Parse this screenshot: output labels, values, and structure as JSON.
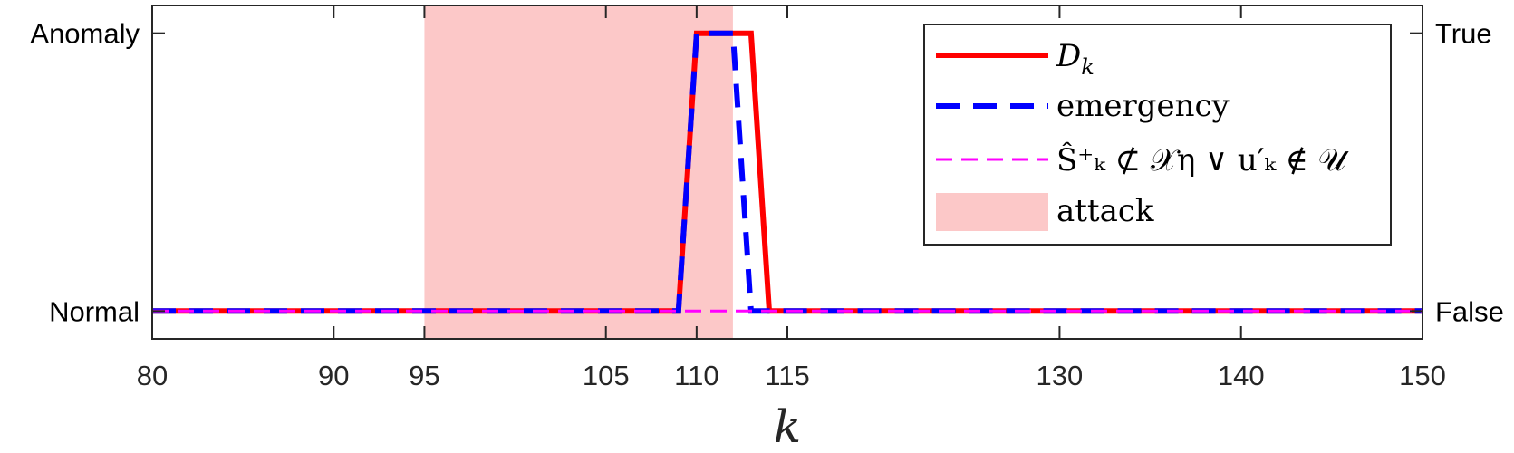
{
  "chart_data": {
    "type": "line",
    "title": "",
    "xlabel": "k",
    "ylabel": "",
    "xlim": [
      80,
      150
    ],
    "ylim": [
      -0.1,
      1.1
    ],
    "xticks": [
      80,
      90,
      95,
      105,
      110,
      115,
      130,
      140,
      150
    ],
    "yticks_left": [
      {
        "value": 0,
        "label": "Normal"
      },
      {
        "value": 1,
        "label": "Anomaly"
      }
    ],
    "yticks_right": [
      {
        "value": 0,
        "label": "False"
      },
      {
        "value": 1,
        "label": "True"
      }
    ],
    "grid": false,
    "legend_position": "top-right",
    "shaded_regions": [
      {
        "name": "attack",
        "x_start": 95,
        "x_end": 112,
        "color": "#fcc8c8"
      }
    ],
    "series": [
      {
        "name": "D_k",
        "color": "#ff0000",
        "style": "solid",
        "x": [
          80,
          109,
          110,
          113,
          114,
          150
        ],
        "y": [
          0,
          0,
          1,
          1,
          0,
          0
        ]
      },
      {
        "name": "emergency",
        "color": "#0000ff",
        "style": "dashed",
        "x": [
          80,
          109,
          110,
          112,
          113,
          150
        ],
        "y": [
          0,
          0,
          1,
          1,
          0,
          0
        ]
      },
      {
        "name": "S_hat_k^+ not subset X_eta or u'_k not in U",
        "color": "#ff00ff",
        "style": "dashed",
        "x": [
          80,
          150
        ],
        "y": [
          0,
          0
        ]
      }
    ],
    "legend": {
      "entries": [
        {
          "series": "D_k",
          "label_main": "D",
          "label_sub": "k"
        },
        {
          "series": "emergency",
          "label": "emergency"
        },
        {
          "series": "condition",
          "label": "Ŝ⁺ₖ ⊄ 𝒳η ∨ u′ₖ ∉ 𝒰"
        },
        {
          "series": "attack",
          "label": "attack"
        }
      ]
    }
  }
}
